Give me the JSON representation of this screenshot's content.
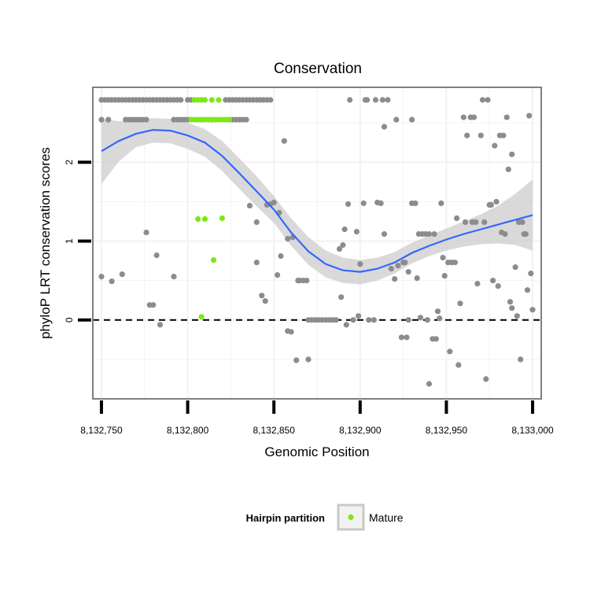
{
  "chart_data": {
    "type": "scatter",
    "title": "Conservation",
    "xlabel": "Genomic Position",
    "ylabel": "phyloP LRT conservation scores",
    "xlim": [
      8132745,
      8133005
    ],
    "ylim": [
      -1.0,
      2.95
    ],
    "x_ticks": [
      8132750,
      8132800,
      8132850,
      8132900,
      8132950,
      8133000
    ],
    "x_tick_labels": [
      "8,132,750",
      "8,132,800",
      "8,132,850",
      "8,132,900",
      "8,132,950",
      "8,133,000"
    ],
    "y_ticks": [
      0,
      1,
      2
    ],
    "y_tick_labels": [
      "0",
      "1",
      "2"
    ],
    "grid": true,
    "reference_line": {
      "y": 0,
      "style": "dashed"
    },
    "legend": {
      "title": "Hairpin partition",
      "entries": [
        "Mature"
      ],
      "placement": "bottom"
    },
    "colors": {
      "other_points": "#8c8c8c",
      "mature_points": "#7fe61a",
      "smooth_line": "#3366ff",
      "confidence_band": "#cccccc",
      "panel_border": "#7f7f7f",
      "grid": "#f2f2f2"
    },
    "series": [
      {
        "name": "Mature",
        "points": [
          [
            8132804,
            2.79
          ],
          [
            8132806,
            2.79
          ],
          [
            8132808,
            2.79
          ],
          [
            8132810,
            2.79
          ],
          [
            8132814,
            2.79
          ],
          [
            8132818,
            2.79
          ],
          [
            8132802,
            2.54
          ],
          [
            8132804,
            2.54
          ],
          [
            8132806,
            2.54
          ],
          [
            8132808,
            2.54
          ],
          [
            8132810,
            2.54
          ],
          [
            8132812,
            2.54
          ],
          [
            8132814,
            2.54
          ],
          [
            8132816,
            2.54
          ],
          [
            8132818,
            2.54
          ],
          [
            8132820,
            2.54
          ],
          [
            8132822,
            2.54
          ],
          [
            8132824,
            2.54
          ],
          [
            8132806,
            1.28
          ],
          [
            8132810,
            1.28
          ],
          [
            8132820,
            1.29
          ],
          [
            8132815,
            0.76
          ],
          [
            8132808,
            0.04
          ]
        ]
      },
      {
        "name": "",
        "points": [
          [
            8132750,
            2.79
          ],
          [
            8132752,
            2.79
          ],
          [
            8132754,
            2.79
          ],
          [
            8132756,
            2.79
          ],
          [
            8132758,
            2.79
          ],
          [
            8132760,
            2.79
          ],
          [
            8132762,
            2.79
          ],
          [
            8132764,
            2.79
          ],
          [
            8132766,
            2.79
          ],
          [
            8132768,
            2.79
          ],
          [
            8132770,
            2.79
          ],
          [
            8132772,
            2.79
          ],
          [
            8132774,
            2.79
          ],
          [
            8132776,
            2.79
          ],
          [
            8132778,
            2.79
          ],
          [
            8132780,
            2.79
          ],
          [
            8132782,
            2.79
          ],
          [
            8132784,
            2.79
          ],
          [
            8132786,
            2.79
          ],
          [
            8132788,
            2.79
          ],
          [
            8132790,
            2.79
          ],
          [
            8132792,
            2.79
          ],
          [
            8132794,
            2.79
          ],
          [
            8132796,
            2.79
          ],
          [
            8132800,
            2.79
          ],
          [
            8132802,
            2.79
          ],
          [
            8132822,
            2.79
          ],
          [
            8132824,
            2.79
          ],
          [
            8132826,
            2.79
          ],
          [
            8132828,
            2.79
          ],
          [
            8132830,
            2.79
          ],
          [
            8132832,
            2.79
          ],
          [
            8132834,
            2.79
          ],
          [
            8132836,
            2.79
          ],
          [
            8132838,
            2.79
          ],
          [
            8132840,
            2.79
          ],
          [
            8132842,
            2.79
          ],
          [
            8132844,
            2.79
          ],
          [
            8132846,
            2.79
          ],
          [
            8132848,
            2.79
          ],
          [
            8132750,
            2.54
          ],
          [
            8132754,
            2.54
          ],
          [
            8132764,
            2.54
          ],
          [
            8132766,
            2.54
          ],
          [
            8132768,
            2.54
          ],
          [
            8132770,
            2.54
          ],
          [
            8132772,
            2.54
          ],
          [
            8132774,
            2.54
          ],
          [
            8132776,
            2.54
          ],
          [
            8132792,
            2.54
          ],
          [
            8132794,
            2.54
          ],
          [
            8132796,
            2.54
          ],
          [
            8132798,
            2.54
          ],
          [
            8132800,
            2.54
          ],
          [
            8132826,
            2.54
          ],
          [
            8132828,
            2.54
          ],
          [
            8132830,
            2.54
          ],
          [
            8132832,
            2.54
          ],
          [
            8132834,
            2.54
          ],
          [
            8132750,
            0.55
          ],
          [
            8132756,
            0.49
          ],
          [
            8132762,
            0.58
          ],
          [
            8132776,
            1.11
          ],
          [
            8132778,
            0.19
          ],
          [
            8132780,
            0.19
          ],
          [
            8132782,
            0.82
          ],
          [
            8132784,
            -0.06
          ],
          [
            8132792,
            0.55
          ],
          [
            8132836,
            1.45
          ],
          [
            8132840,
            1.24
          ],
          [
            8132840,
            0.73
          ],
          [
            8132843,
            0.31
          ],
          [
            8132845,
            0.24
          ],
          [
            8132846,
            1.46
          ],
          [
            8132848,
            1.47
          ],
          [
            8132850,
            1.49
          ],
          [
            8132852,
            0.57
          ],
          [
            8132853,
            1.36
          ],
          [
            8132854,
            0.81
          ],
          [
            8132856,
            2.27
          ],
          [
            8132858,
            1.03
          ],
          [
            8132858,
            -0.14
          ],
          [
            8132860,
            -0.15
          ],
          [
            8132861,
            1.05
          ],
          [
            8132863,
            -0.51
          ],
          [
            8132864,
            0.5
          ],
          [
            8132865,
            0.5
          ],
          [
            8132867,
            0.5
          ],
          [
            8132869,
            0.5
          ],
          [
            8132870,
            -0.5
          ],
          [
            8132870,
            0.0
          ],
          [
            8132872,
            0.0
          ],
          [
            8132874,
            0.0
          ],
          [
            8132876,
            0.0
          ],
          [
            8132878,
            0.0
          ],
          [
            8132880,
            0.0
          ],
          [
            8132882,
            0.0
          ],
          [
            8132884,
            0.0
          ],
          [
            8132886,
            0.0
          ],
          [
            8132888,
            0.9
          ],
          [
            8132889,
            0.29
          ],
          [
            8132890,
            0.95
          ],
          [
            8132891,
            1.15
          ],
          [
            8132892,
            -0.06
          ],
          [
            8132893,
            1.47
          ],
          [
            8132894,
            2.79
          ],
          [
            8132896,
            0.0
          ],
          [
            8132898,
            1.12
          ],
          [
            8132899,
            0.05
          ],
          [
            8132900,
            0.71
          ],
          [
            8132902,
            1.48
          ],
          [
            8132903,
            2.79
          ],
          [
            8132904,
            2.79
          ],
          [
            8132905,
            0.0
          ],
          [
            8132908,
            0.0
          ],
          [
            8132909,
            2.79
          ],
          [
            8132910,
            1.49
          ],
          [
            8132912,
            1.48
          ],
          [
            8132913,
            2.79
          ],
          [
            8132914,
            1.09
          ],
          [
            8132914,
            2.45
          ],
          [
            8132916,
            2.79
          ],
          [
            8132918,
            0.65
          ],
          [
            8132920,
            0.52
          ],
          [
            8132921,
            2.54
          ],
          [
            8132922,
            0.69
          ],
          [
            8132924,
            -0.22
          ],
          [
            8132925,
            0.73
          ],
          [
            8132926,
            0.73
          ],
          [
            8132927,
            -0.22
          ],
          [
            8132928,
            0.0
          ],
          [
            8132928,
            0.61
          ],
          [
            8132930,
            2.54
          ],
          [
            8132930,
            1.48
          ],
          [
            8132932,
            1.48
          ],
          [
            8132933,
            0.53
          ],
          [
            8132934,
            1.09
          ],
          [
            8132935,
            0.03
          ],
          [
            8132936,
            1.09
          ],
          [
            8132938,
            1.09
          ],
          [
            8132939,
            0.0
          ],
          [
            8132940,
            -0.81
          ],
          [
            8132940,
            1.09
          ],
          [
            8132942,
            -0.24
          ],
          [
            8132943,
            1.09
          ],
          [
            8132944,
            -0.24
          ],
          [
            8132945,
            0.11
          ],
          [
            8132946,
            0.02
          ],
          [
            8132947,
            1.48
          ],
          [
            8132948,
            0.79
          ],
          [
            8132949,
            0.56
          ],
          [
            8132951,
            0.73
          ],
          [
            8132952,
            -0.4
          ],
          [
            8132953,
            0.73
          ],
          [
            8132955,
            0.73
          ],
          [
            8132956,
            1.29
          ],
          [
            8132957,
            -0.57
          ],
          [
            8132958,
            0.21
          ],
          [
            8132960,
            2.57
          ],
          [
            8132961,
            1.24
          ],
          [
            8132962,
            2.34
          ],
          [
            8132964,
            2.57
          ],
          [
            8132965,
            1.24
          ],
          [
            8132966,
            2.57
          ],
          [
            8132967,
            1.24
          ],
          [
            8132968,
            0.46
          ],
          [
            8132970,
            2.34
          ],
          [
            8132971,
            2.79
          ],
          [
            8132972,
            1.24
          ],
          [
            8132973,
            -0.75
          ],
          [
            8132974,
            2.79
          ],
          [
            8132975,
            1.46
          ],
          [
            8132976,
            1.46
          ],
          [
            8132977,
            0.5
          ],
          [
            8132978,
            2.21
          ],
          [
            8132979,
            1.5
          ],
          [
            8132980,
            0.43
          ],
          [
            8132981,
            2.34
          ],
          [
            8132982,
            1.11
          ],
          [
            8132983,
            2.34
          ],
          [
            8132984,
            1.09
          ],
          [
            8132985,
            2.57
          ],
          [
            8132986,
            1.91
          ],
          [
            8132987,
            0.23
          ],
          [
            8132988,
            2.1
          ],
          [
            8132988,
            0.15
          ],
          [
            8132990,
            0.67
          ],
          [
            8132991,
            0.05
          ],
          [
            8132992,
            1.24
          ],
          [
            8132993,
            -0.5
          ],
          [
            8132994,
            1.24
          ],
          [
            8132995,
            1.09
          ],
          [
            8132996,
            1.09
          ],
          [
            8132997,
            0.38
          ],
          [
            8132998,
            2.59
          ],
          [
            8132999,
            0.59
          ],
          [
            8133000,
            0.13
          ]
        ]
      }
    ],
    "smooth": {
      "x": [
        8132750,
        8132760,
        8132770,
        8132780,
        8132790,
        8132800,
        8132810,
        8132820,
        8132830,
        8132840,
        8132850,
        8132860,
        8132870,
        8132880,
        8132890,
        8132900,
        8132910,
        8132920,
        8132930,
        8132940,
        8132950,
        8132960,
        8132970,
        8132980,
        8132990,
        8133000
      ],
      "y": [
        2.14,
        2.27,
        2.36,
        2.41,
        2.4,
        2.34,
        2.25,
        2.08,
        1.86,
        1.63,
        1.4,
        1.11,
        0.87,
        0.71,
        0.63,
        0.61,
        0.65,
        0.73,
        0.85,
        0.94,
        1.02,
        1.09,
        1.15,
        1.21,
        1.27,
        1.33
      ],
      "upper": [
        2.55,
        2.52,
        2.53,
        2.56,
        2.55,
        2.5,
        2.42,
        2.27,
        2.05,
        1.82,
        1.57,
        1.29,
        1.05,
        0.88,
        0.79,
        0.76,
        0.79,
        0.86,
        0.98,
        1.07,
        1.16,
        1.25,
        1.34,
        1.45,
        1.6,
        1.78
      ],
      "lower": [
        1.72,
        2.01,
        2.19,
        2.25,
        2.24,
        2.17,
        2.07,
        1.89,
        1.66,
        1.44,
        1.23,
        0.94,
        0.7,
        0.54,
        0.47,
        0.45,
        0.5,
        0.59,
        0.72,
        0.81,
        0.88,
        0.93,
        0.96,
        0.97,
        0.95,
        0.88
      ]
    }
  }
}
